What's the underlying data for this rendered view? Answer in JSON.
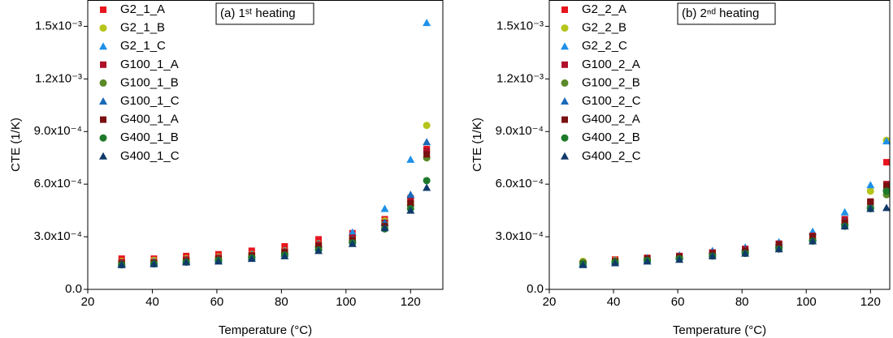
{
  "chart_data": [
    {
      "type": "scatter",
      "title": "(a) 1ˢᵗ heating",
      "x_label": "Temperature (°C)",
      "y_label": "CTE (1/K)",
      "x": [
        30.5,
        40.5,
        50.5,
        60.5,
        70.8,
        81,
        91.5,
        102,
        112,
        120,
        125
      ],
      "xlim": [
        20,
        130
      ],
      "ylim": [
        0,
        0.00165
      ],
      "xticks": [
        20,
        40,
        60,
        80,
        100,
        120
      ],
      "yticks": [
        {
          "value": 0,
          "label": "0.0"
        },
        {
          "value": 0.0003,
          "label": "3.0x10⁻⁴"
        },
        {
          "value": 0.0006,
          "label": "6.0x10⁻⁴"
        },
        {
          "value": 0.0009,
          "label": "9.0x10⁻⁴"
        },
        {
          "value": 0.0012,
          "label": "1.2x10⁻³"
        },
        {
          "value": 0.0015,
          "label": "1.5x10⁻³"
        }
      ],
      "legend": "upper left",
      "series": [
        {
          "name": "G2_1_A",
          "color": "#e8141e",
          "marker": "square",
          "values": [
            0.000175,
            0.000175,
            0.00019,
            0.0002,
            0.00022,
            0.000245,
            0.000285,
            0.00032,
            0.0004,
            0.00052,
            0.0008
          ]
        },
        {
          "name": "G2_1_B",
          "color": "#b5c51a",
          "marker": "circle",
          "values": [
            0.00016,
            0.000165,
            0.000175,
            0.000185,
            0.0002,
            0.00022,
            0.00026,
            0.0003,
            0.00039,
            0.0005,
            0.000935
          ]
        },
        {
          "name": "G2_1_C",
          "color": "#1e90e8",
          "marker": "triangle",
          "values": [
            0.00015,
            0.00016,
            0.00017,
            0.00018,
            0.0002,
            0.00022,
            0.00026,
            0.000325,
            0.00046,
            0.00074,
            0.00152
          ]
        },
        {
          "name": "G100_1_A",
          "color": "#b0102a",
          "marker": "square",
          "values": [
            0.000155,
            0.000155,
            0.00017,
            0.00018,
            0.000195,
            0.000215,
            0.000255,
            0.000295,
            0.00038,
            0.00051,
            0.00079
          ]
        },
        {
          "name": "G100_1_B",
          "color": "#5a8a28",
          "marker": "circle",
          "values": [
            0.000145,
            0.00015,
            0.00016,
            0.00017,
            0.000185,
            0.000205,
            0.00024,
            0.00028,
            0.00037,
            0.00048,
            0.00075
          ]
        },
        {
          "name": "G100_1_C",
          "color": "#1a6ab8",
          "marker": "triangle",
          "values": [
            0.000145,
            0.00015,
            0.00016,
            0.00017,
            0.000185,
            0.000205,
            0.00024,
            0.000285,
            0.00038,
            0.00054,
            0.00084
          ]
        },
        {
          "name": "G400_1_A",
          "color": "#7a1010",
          "marker": "square",
          "values": [
            0.000145,
            0.00015,
            0.00016,
            0.00017,
            0.00019,
            0.00021,
            0.000245,
            0.00028,
            0.00036,
            0.00049,
            0.00077
          ]
        },
        {
          "name": "G400_1_B",
          "color": "#1e7a2a",
          "marker": "circle",
          "values": [
            0.00014,
            0.000145,
            0.000155,
            0.000165,
            0.00018,
            0.000195,
            0.000225,
            0.000265,
            0.000345,
            0.00046,
            0.00062
          ]
        },
        {
          "name": "G400_1_C",
          "color": "#103a6a",
          "marker": "triangle",
          "values": [
            0.00014,
            0.000145,
            0.000155,
            0.00016,
            0.000175,
            0.00019,
            0.00022,
            0.00026,
            0.00035,
            0.00045,
            0.00058
          ]
        }
      ]
    },
    {
      "type": "scatter",
      "title": "(b) 2ⁿᵈ heating",
      "x_label": "Temperature (°C)",
      "y_label": "CTE (1/K)",
      "x": [
        30.5,
        40.5,
        50.5,
        60.5,
        70.8,
        81,
        91.5,
        102,
        112,
        120,
        125
      ],
      "xlim": [
        20,
        126
      ],
      "ylim": [
        0,
        0.00165
      ],
      "xticks": [
        20,
        40,
        60,
        80,
        100,
        120
      ],
      "yticks": [
        {
          "value": 0,
          "label": "0.0"
        },
        {
          "value": 0.0003,
          "label": "3.0x10⁻⁴"
        },
        {
          "value": 0.0006,
          "label": "6.0x10⁻⁴"
        },
        {
          "value": 0.0009,
          "label": "9.0x10⁻⁴"
        },
        {
          "value": 0.0012,
          "label": "1.2x10⁻³"
        },
        {
          "value": 0.0015,
          "label": "1.5x10⁻³"
        }
      ],
      "legend": "upper left",
      "series": [
        {
          "name": "G2_2_A",
          "color": "#e8141e",
          "marker": "square",
          "values": [
            0.00015,
            0.00017,
            0.00018,
            0.00019,
            0.00021,
            0.00023,
            0.00026,
            0.0003,
            0.00039,
            0.00049,
            0.000725
          ]
        },
        {
          "name": "G2_2_B",
          "color": "#b5c51a",
          "marker": "circle",
          "values": [
            0.00016,
            0.000165,
            0.000175,
            0.000185,
            0.0002,
            0.00022,
            0.00025,
            0.00029,
            0.000375,
            0.00056,
            0.00085
          ]
        },
        {
          "name": "G2_2_C",
          "color": "#1e90e8",
          "marker": "triangle",
          "values": [
            0.00015,
            0.000165,
            0.00018,
            0.000195,
            0.00022,
            0.00024,
            0.00027,
            0.00033,
            0.00044,
            0.000595,
            0.000845
          ]
        },
        {
          "name": "G100_2_A",
          "color": "#b0102a",
          "marker": "square",
          "values": [
            0.000145,
            0.00016,
            0.000175,
            0.00019,
            0.00021,
            0.00023,
            0.00026,
            0.000305,
            0.0004,
            0.0005,
            0.0006
          ]
        },
        {
          "name": "G100_2_B",
          "color": "#5a8a28",
          "marker": "circle",
          "values": [
            0.000155,
            0.00016,
            0.00017,
            0.00018,
            0.000195,
            0.000215,
            0.00024,
            0.00028,
            0.00037,
            0.00047,
            0.00054
          ]
        },
        {
          "name": "G100_2_C",
          "color": "#1a6ab8",
          "marker": "triangle",
          "values": [
            0.000145,
            0.00016,
            0.00017,
            0.000185,
            0.000205,
            0.000225,
            0.000255,
            0.000295,
            0.000385,
            0.00048,
            0.00058
          ]
        },
        {
          "name": "G400_2_A",
          "color": "#7a1010",
          "marker": "square",
          "values": [
            0.000145,
            0.00016,
            0.000175,
            0.000185,
            0.000205,
            0.00022,
            0.000255,
            0.0003,
            0.00038,
            0.0005,
            0.00059
          ]
        },
        {
          "name": "G400_2_B",
          "color": "#1e7a2a",
          "marker": "circle",
          "values": [
            0.000145,
            0.000155,
            0.000165,
            0.000175,
            0.00019,
            0.000205,
            0.00023,
            0.000275,
            0.00036,
            0.00046,
            0.00056
          ]
        },
        {
          "name": "G400_2_C",
          "color": "#103a6a",
          "marker": "triangle",
          "values": [
            0.00014,
            0.00015,
            0.00016,
            0.00017,
            0.00019,
            0.000205,
            0.00023,
            0.000275,
            0.00036,
            0.00046,
            0.000465
          ]
        }
      ]
    }
  ]
}
